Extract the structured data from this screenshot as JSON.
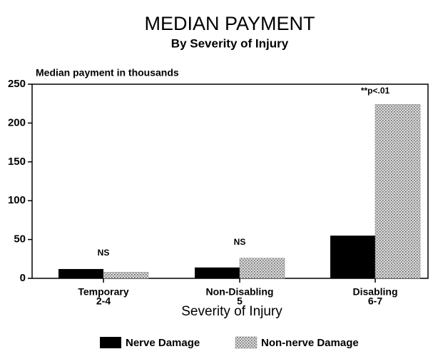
{
  "chart_data": {
    "type": "bar",
    "title": "MEDIAN PAYMENT",
    "subtitle": "By Severity of Injury",
    "y_axis_label": "Median payment in thousands",
    "x_axis_label": "Severity of Injury",
    "categories": [
      "Temporary",
      "Non-Disabling",
      "Disabling"
    ],
    "category_ranges": [
      "2-4",
      "5",
      "6-7"
    ],
    "series": [
      {
        "name": "Nerve Damage",
        "color": "#000000",
        "values": [
          12,
          14,
          55
        ]
      },
      {
        "name": "Non-nerve Damage",
        "color": "#9a9a9a",
        "values": [
          8,
          26,
          224
        ]
      }
    ],
    "annotations": [
      "NS",
      "NS",
      "**p<.01"
    ],
    "ylim": [
      0,
      250
    ],
    "yticks": [
      0,
      50,
      100,
      150,
      200,
      250
    ],
    "legend": "bottom"
  }
}
